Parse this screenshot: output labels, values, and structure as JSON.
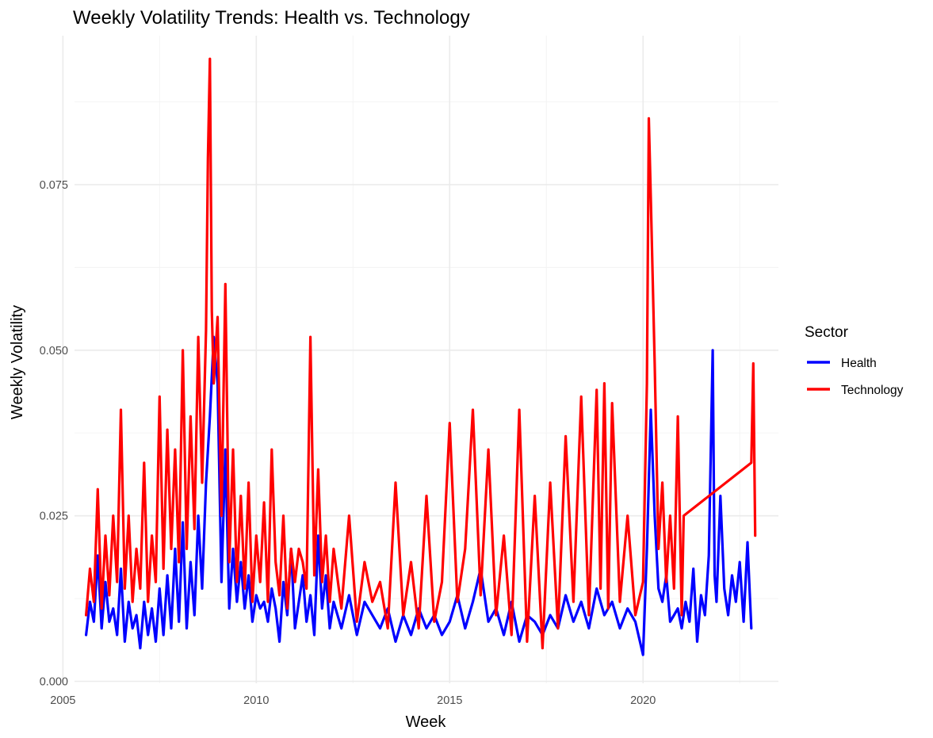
{
  "chart_data": {
    "type": "line",
    "title": "Weekly Volatility Trends: Health vs. Technology",
    "xlabel": "Week",
    "ylabel": "Weekly Volatility",
    "xlim": [
      2005.3,
      2023.5
    ],
    "ylim": [
      -0.0003,
      0.0975
    ],
    "x_ticks": [
      2005,
      2010,
      2015,
      2020
    ],
    "y_ticks": [
      0.0,
      0.025,
      0.05,
      0.075
    ],
    "x_tick_labels": [
      "2005",
      "2010",
      "2015",
      "2020"
    ],
    "y_tick_labels": [
      "0.000",
      "0.025",
      "0.050",
      "0.075"
    ],
    "grid": true,
    "legend": {
      "title": "Sector",
      "position": "right"
    },
    "series": [
      {
        "name": "Health",
        "color": "#0000ff",
        "x": [
          2005.6,
          2005.7,
          2005.8,
          2005.9,
          2006.0,
          2006.1,
          2006.2,
          2006.3,
          2006.4,
          2006.5,
          2006.6,
          2006.7,
          2006.8,
          2006.9,
          2007.0,
          2007.1,
          2007.2,
          2007.3,
          2007.4,
          2007.5,
          2007.6,
          2007.7,
          2007.8,
          2007.9,
          2008.0,
          2008.1,
          2008.2,
          2008.3,
          2008.4,
          2008.5,
          2008.6,
          2008.7,
          2008.8,
          2008.9,
          2009.0,
          2009.1,
          2009.2,
          2009.3,
          2009.4,
          2009.5,
          2009.6,
          2009.7,
          2009.8,
          2009.9,
          2010.0,
          2010.1,
          2010.2,
          2010.3,
          2010.4,
          2010.5,
          2010.6,
          2010.7,
          2010.8,
          2010.9,
          2011.0,
          2011.1,
          2011.2,
          2011.3,
          2011.4,
          2011.5,
          2011.6,
          2011.7,
          2011.8,
          2011.9,
          2012.0,
          2012.2,
          2012.4,
          2012.6,
          2012.8,
          2013.0,
          2013.2,
          2013.4,
          2013.6,
          2013.8,
          2014.0,
          2014.2,
          2014.4,
          2014.6,
          2014.8,
          2015.0,
          2015.2,
          2015.4,
          2015.6,
          2015.8,
          2016.0,
          2016.2,
          2016.4,
          2016.6,
          2016.8,
          2017.0,
          2017.2,
          2017.4,
          2017.6,
          2017.8,
          2018.0,
          2018.2,
          2018.4,
          2018.6,
          2018.8,
          2019.0,
          2019.2,
          2019.4,
          2019.6,
          2019.8,
          2020.0,
          2020.1,
          2020.2,
          2020.3,
          2020.4,
          2020.5,
          2020.6,
          2020.7,
          2020.8,
          2020.9,
          2021.0,
          2021.1,
          2021.2,
          2021.3,
          2021.4,
          2021.5,
          2021.6,
          2021.7,
          2021.8,
          2021.85,
          2021.9,
          2022.0,
          2022.1,
          2022.2,
          2022.3,
          2022.4,
          2022.5,
          2022.6,
          2022.7,
          2022.8
        ],
        "y": [
          0.007,
          0.012,
          0.009,
          0.019,
          0.008,
          0.015,
          0.009,
          0.011,
          0.007,
          0.017,
          0.006,
          0.012,
          0.008,
          0.01,
          0.005,
          0.012,
          0.007,
          0.011,
          0.006,
          0.014,
          0.007,
          0.016,
          0.008,
          0.02,
          0.009,
          0.024,
          0.008,
          0.018,
          0.01,
          0.025,
          0.014,
          0.03,
          0.04,
          0.052,
          0.045,
          0.015,
          0.035,
          0.011,
          0.02,
          0.012,
          0.018,
          0.011,
          0.016,
          0.009,
          0.013,
          0.011,
          0.012,
          0.009,
          0.014,
          0.011,
          0.006,
          0.015,
          0.01,
          0.02,
          0.008,
          0.012,
          0.016,
          0.009,
          0.013,
          0.007,
          0.022,
          0.011,
          0.016,
          0.008,
          0.012,
          0.008,
          0.013,
          0.007,
          0.012,
          0.01,
          0.008,
          0.011,
          0.006,
          0.01,
          0.007,
          0.011,
          0.008,
          0.01,
          0.007,
          0.009,
          0.013,
          0.008,
          0.012,
          0.017,
          0.009,
          0.011,
          0.007,
          0.012,
          0.006,
          0.01,
          0.009,
          0.007,
          0.01,
          0.008,
          0.013,
          0.009,
          0.012,
          0.008,
          0.014,
          0.01,
          0.012,
          0.008,
          0.011,
          0.009,
          0.004,
          0.02,
          0.041,
          0.025,
          0.014,
          0.012,
          0.016,
          0.009,
          0.01,
          0.011,
          0.008,
          0.012,
          0.009,
          0.017,
          0.006,
          0.013,
          0.01,
          0.019,
          0.05,
          0.016,
          0.012,
          0.028,
          0.014,
          0.01,
          0.016,
          0.012,
          0.018,
          0.009,
          0.021,
          0.008
        ],
        "note_hidden": ""
      },
      {
        "name": "Technology",
        "color": "#ff0000",
        "x": [
          2005.6,
          2005.7,
          2005.8,
          2005.9,
          2006.0,
          2006.1,
          2006.2,
          2006.3,
          2006.4,
          2006.5,
          2006.6,
          2006.7,
          2006.8,
          2006.9,
          2007.0,
          2007.1,
          2007.2,
          2007.3,
          2007.4,
          2007.5,
          2007.6,
          2007.7,
          2007.8,
          2007.9,
          2008.0,
          2008.1,
          2008.2,
          2008.3,
          2008.4,
          2008.5,
          2008.6,
          2008.7,
          2008.75,
          2008.8,
          2008.85,
          2008.9,
          2009.0,
          2009.1,
          2009.2,
          2009.3,
          2009.4,
          2009.5,
          2009.6,
          2009.7,
          2009.8,
          2009.9,
          2010.0,
          2010.1,
          2010.2,
          2010.3,
          2010.4,
          2010.5,
          2010.6,
          2010.7,
          2010.8,
          2010.9,
          2011.0,
          2011.1,
          2011.2,
          2011.3,
          2011.4,
          2011.5,
          2011.6,
          2011.7,
          2011.8,
          2011.9,
          2012.0,
          2012.2,
          2012.4,
          2012.6,
          2012.8,
          2013.0,
          2013.2,
          2013.4,
          2013.6,
          2013.8,
          2014.0,
          2014.2,
          2014.4,
          2014.6,
          2014.8,
          2015.0,
          2015.2,
          2015.4,
          2015.6,
          2015.8,
          2016.0,
          2016.2,
          2016.4,
          2016.6,
          2016.8,
          2017.0,
          2017.2,
          2017.4,
          2017.6,
          2017.8,
          2018.0,
          2018.2,
          2018.4,
          2018.6,
          2018.8,
          2018.9,
          2019.0,
          2019.1,
          2019.2,
          2019.4,
          2019.6,
          2019.8,
          2020.0,
          2020.1,
          2020.15,
          2020.2,
          2020.3,
          2020.4,
          2020.5,
          2020.6,
          2020.7,
          2020.8,
          2020.9,
          2021.0,
          2021.05,
          2022.8,
          2022.85,
          2022.9
        ],
        "y": [
          0.01,
          0.017,
          0.012,
          0.029,
          0.011,
          0.022,
          0.013,
          0.025,
          0.015,
          0.041,
          0.014,
          0.025,
          0.012,
          0.02,
          0.014,
          0.033,
          0.012,
          0.022,
          0.015,
          0.043,
          0.017,
          0.038,
          0.02,
          0.035,
          0.018,
          0.05,
          0.02,
          0.04,
          0.023,
          0.052,
          0.03,
          0.053,
          0.079,
          0.094,
          0.056,
          0.045,
          0.055,
          0.025,
          0.06,
          0.018,
          0.035,
          0.015,
          0.028,
          0.014,
          0.03,
          0.012,
          0.022,
          0.015,
          0.027,
          0.012,
          0.035,
          0.018,
          0.013,
          0.025,
          0.011,
          0.02,
          0.015,
          0.02,
          0.018,
          0.014,
          0.052,
          0.016,
          0.032,
          0.015,
          0.022,
          0.012,
          0.02,
          0.011,
          0.025,
          0.009,
          0.018,
          0.012,
          0.015,
          0.008,
          0.03,
          0.01,
          0.018,
          0.008,
          0.028,
          0.009,
          0.015,
          0.039,
          0.012,
          0.02,
          0.041,
          0.013,
          0.035,
          0.01,
          0.022,
          0.007,
          0.041,
          0.006,
          0.028,
          0.005,
          0.03,
          0.008,
          0.037,
          0.012,
          0.043,
          0.01,
          0.044,
          0.014,
          0.045,
          0.011,
          0.042,
          0.012,
          0.025,
          0.01,
          0.015,
          0.045,
          0.085,
          0.073,
          0.048,
          0.02,
          0.03,
          0.015,
          0.025,
          0.014,
          0.04,
          0.01,
          0.025,
          0.033,
          0.048,
          0.022
        ]
      }
    ]
  }
}
